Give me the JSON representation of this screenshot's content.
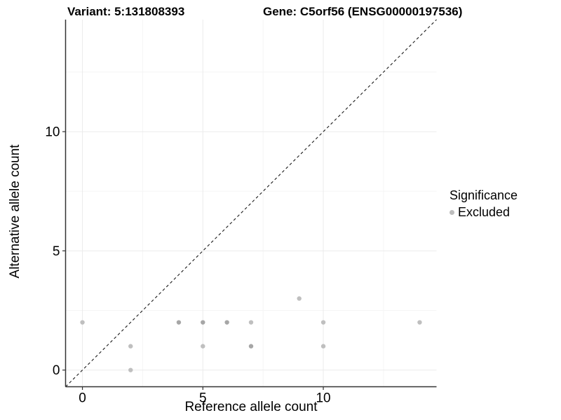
{
  "header": {
    "variant_title": "Variant: 5:131808393",
    "gene_title": "Gene: C5orf56 (ENSG00000197536)"
  },
  "chart_data": {
    "type": "scatter",
    "title": "Variant: 5:131808393",
    "subtitle": "Gene: C5orf56 (ENSG00000197536)",
    "xlabel": "Reference allele count",
    "ylabel": "Alternative allele count",
    "xlim": [
      -0.7,
      14.7
    ],
    "ylim": [
      -0.7,
      14.7
    ],
    "x_ticks": [
      {
        "value": 0,
        "label": "0"
      },
      {
        "value": 5,
        "label": "5"
      },
      {
        "value": 10,
        "label": "10"
      }
    ],
    "y_ticks": [
      {
        "value": 0,
        "label": "0"
      },
      {
        "value": 5,
        "label": "5"
      },
      {
        "value": 10,
        "label": "10"
      }
    ],
    "minor_grid_values": [
      2.5,
      7.5,
      12.5
    ],
    "grid": true,
    "identity_line": {
      "style": "dashed",
      "from": -0.7,
      "to": 14.7
    },
    "series": [
      {
        "name": "Excluded",
        "points": [
          {
            "x": 0,
            "y": 2,
            "shade": "light"
          },
          {
            "x": 2,
            "y": 0,
            "shade": "light"
          },
          {
            "x": 2,
            "y": 1,
            "shade": "light"
          },
          {
            "x": 4,
            "y": 2,
            "shade": "dark"
          },
          {
            "x": 5,
            "y": 1,
            "shade": "light"
          },
          {
            "x": 5,
            "y": 2,
            "shade": "dark"
          },
          {
            "x": 6,
            "y": 2,
            "shade": "dark"
          },
          {
            "x": 7,
            "y": 1,
            "shade": "dark"
          },
          {
            "x": 7,
            "y": 2,
            "shade": "light"
          },
          {
            "x": 9,
            "y": 3,
            "shade": "light"
          },
          {
            "x": 10,
            "y": 1,
            "shade": "light"
          },
          {
            "x": 10,
            "y": 2,
            "shade": "light"
          },
          {
            "x": 14,
            "y": 2,
            "shade": "light"
          }
        ]
      }
    ],
    "legend": {
      "position": "right",
      "title": "Significance",
      "items": [
        {
          "label": "Excluded",
          "marker": "point-marker-icon",
          "marker_color": "#bdbdbd"
        }
      ]
    }
  },
  "colors": {
    "background": "#ffffff",
    "point_light": "#bfbfbf",
    "point_dark": "#a6a6a6",
    "grid_major": "#ebebeb",
    "grid_minor": "#f5f5f5",
    "axis_line": "#333333",
    "tick_mark": "#333333",
    "identity_line": "#1a1a1a",
    "text": "#000000"
  }
}
